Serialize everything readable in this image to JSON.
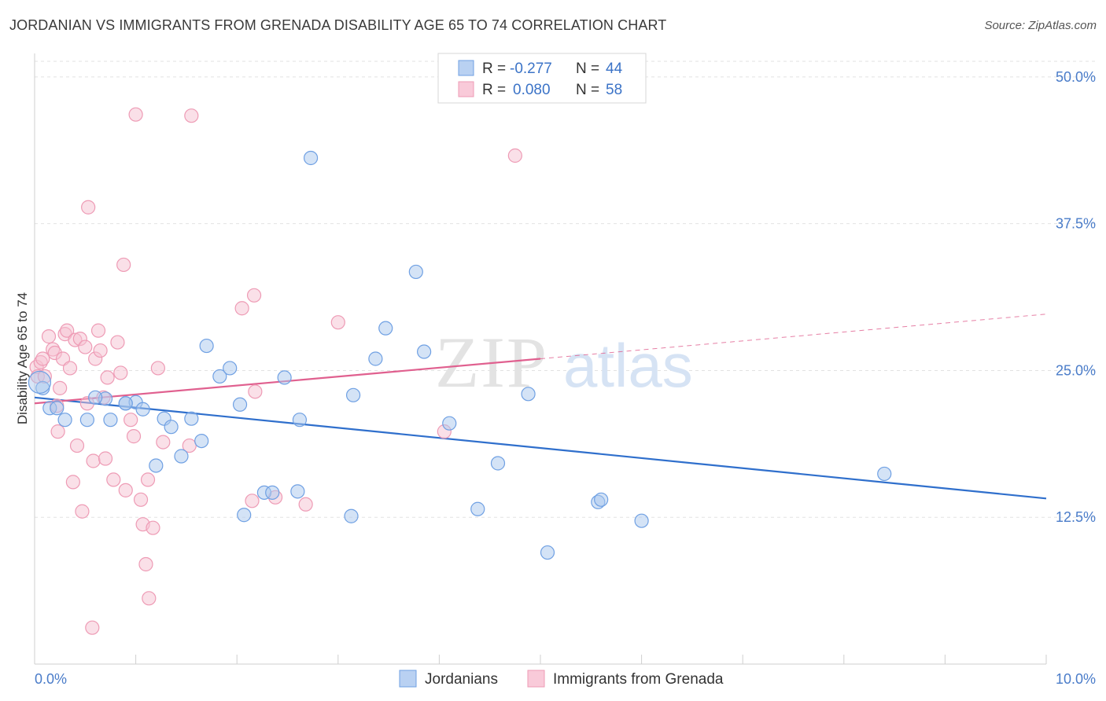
{
  "title": "JORDANIAN VS IMMIGRANTS FROM GRENADA DISABILITY AGE 65 TO 74 CORRELATION CHART",
  "source": "Source: ZipAtlas.com",
  "watermark": {
    "zip": "ZIP",
    "atlas": "atlas"
  },
  "legend": {
    "rows": [
      {
        "r_label": "R =",
        "r_value": "-0.277",
        "n_label": "N =",
        "n_value": "44"
      },
      {
        "r_label": "R =",
        "r_value": "0.080",
        "n_label": "N =",
        "n_value": "58"
      }
    ]
  },
  "chart_data": {
    "type": "scatter",
    "ylabel": "Disability Age 65 to 74",
    "xlim": [
      0,
      10
    ],
    "ylim": [
      0,
      52
    ],
    "x_tick_labels": [
      "0.0%",
      "10.0%"
    ],
    "y_ticks": [
      12.5,
      25.0,
      37.5,
      50.0
    ],
    "y_tick_labels": [
      "12.5%",
      "25.0%",
      "37.5%",
      "50.0%"
    ],
    "grid": true,
    "legend_position": "bottom",
    "series": [
      {
        "name": "Jordanians",
        "color": "#6fa0e3",
        "fill": "#a9c7ee",
        "line_color": "#2f6fcc",
        "trend": {
          "x0": 0.0,
          "y0": 22.7,
          "x1": 10.0,
          "y1": 14.1,
          "dashed_from": null
        },
        "points": [
          [
            0.08,
            23.5
          ],
          [
            0.15,
            21.8
          ],
          [
            0.22,
            21.8
          ],
          [
            0.3,
            20.8
          ],
          [
            0.52,
            20.8
          ],
          [
            0.7,
            22.6
          ],
          [
            0.75,
            20.8
          ],
          [
            0.9,
            22.2
          ],
          [
            1.0,
            22.3
          ],
          [
            1.07,
            21.7
          ],
          [
            0.9,
            22.2
          ],
          [
            1.2,
            16.9
          ],
          [
            1.28,
            20.9
          ],
          [
            1.35,
            20.2
          ],
          [
            1.45,
            17.7
          ],
          [
            1.55,
            20.9
          ],
          [
            1.65,
            19.0
          ],
          [
            1.7,
            27.1
          ],
          [
            1.83,
            24.5
          ],
          [
            1.93,
            25.2
          ],
          [
            2.03,
            22.1
          ],
          [
            2.07,
            12.7
          ],
          [
            2.27,
            14.6
          ],
          [
            2.35,
            14.6
          ],
          [
            2.47,
            24.4
          ],
          [
            2.6,
            14.7
          ],
          [
            2.62,
            20.8
          ],
          [
            2.73,
            43.1
          ],
          [
            3.13,
            12.6
          ],
          [
            3.15,
            22.9
          ],
          [
            3.37,
            26.0
          ],
          [
            3.47,
            28.6
          ],
          [
            3.77,
            33.4
          ],
          [
            3.85,
            26.6
          ],
          [
            4.1,
            20.5
          ],
          [
            4.38,
            13.2
          ],
          [
            4.58,
            17.1
          ],
          [
            4.88,
            23.0
          ],
          [
            5.07,
            9.5
          ],
          [
            5.57,
            13.8
          ],
          [
            5.6,
            14.0
          ],
          [
            6.0,
            12.2
          ],
          [
            8.4,
            16.2
          ],
          [
            0.6,
            22.7
          ]
        ]
      },
      {
        "name": "Immigrants from Grenada",
        "color": "#ee9bb5",
        "fill": "#f6c1d2",
        "line_color": "#e0608f",
        "trend": {
          "x0": 0.0,
          "y0": 22.2,
          "x1": 10.0,
          "y1": 29.8,
          "dashed_from": 5.0
        },
        "points": [
          [
            0.02,
            25.3
          ],
          [
            0.03,
            24.5
          ],
          [
            0.06,
            25.7
          ],
          [
            0.08,
            26.0
          ],
          [
            0.1,
            24.5
          ],
          [
            0.14,
            27.9
          ],
          [
            0.18,
            26.8
          ],
          [
            0.2,
            26.5
          ],
          [
            0.22,
            22.0
          ],
          [
            0.23,
            19.8
          ],
          [
            0.25,
            23.5
          ],
          [
            0.28,
            26.0
          ],
          [
            0.3,
            28.1
          ],
          [
            0.32,
            28.4
          ],
          [
            0.35,
            25.2
          ],
          [
            0.38,
            15.5
          ],
          [
            0.4,
            27.6
          ],
          [
            0.42,
            18.6
          ],
          [
            0.45,
            27.7
          ],
          [
            0.47,
            13.0
          ],
          [
            0.5,
            27.0
          ],
          [
            0.52,
            22.2
          ],
          [
            0.53,
            38.9
          ],
          [
            0.58,
            17.3
          ],
          [
            0.6,
            26.0
          ],
          [
            0.63,
            28.4
          ],
          [
            0.65,
            26.7
          ],
          [
            0.68,
            22.7
          ],
          [
            0.7,
            17.5
          ],
          [
            0.72,
            24.4
          ],
          [
            0.78,
            15.7
          ],
          [
            0.82,
            27.4
          ],
          [
            0.85,
            24.8
          ],
          [
            0.88,
            34.0
          ],
          [
            0.9,
            14.8
          ],
          [
            0.95,
            20.8
          ],
          [
            0.98,
            19.4
          ],
          [
            1.0,
            46.8
          ],
          [
            1.05,
            14.0
          ],
          [
            1.07,
            11.9
          ],
          [
            1.1,
            8.5
          ],
          [
            1.12,
            15.7
          ],
          [
            1.13,
            5.6
          ],
          [
            1.17,
            11.6
          ],
          [
            1.22,
            25.2
          ],
          [
            1.27,
            18.9
          ],
          [
            1.53,
            18.6
          ],
          [
            1.55,
            46.7
          ],
          [
            2.05,
            30.3
          ],
          [
            2.15,
            13.9
          ],
          [
            2.17,
            31.4
          ],
          [
            2.18,
            23.2
          ],
          [
            2.38,
            14.2
          ],
          [
            2.68,
            13.6
          ],
          [
            3.0,
            29.1
          ],
          [
            4.05,
            19.8
          ],
          [
            4.75,
            43.3
          ],
          [
            0.57,
            3.1
          ]
        ]
      }
    ]
  }
}
